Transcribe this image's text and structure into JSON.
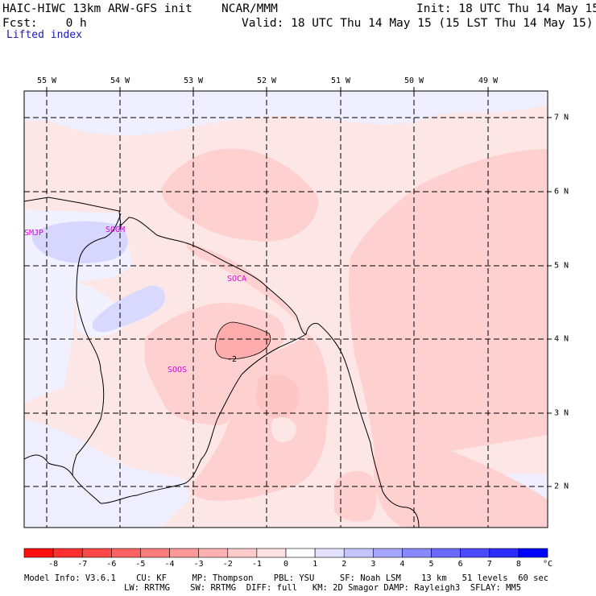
{
  "header": {
    "model": "HAIC-HIWC 13km ARW-GFS init",
    "center": "NCAR/MMM",
    "init": "Init: 18 UTC Thu 14 May 15",
    "fcst": "Fcst:    0 h",
    "valid": "Valid: 18 UTC Thu 14 May 15 (15 LST Thu 14 May 15)",
    "field": "Lifted index"
  },
  "longitude_labels": [
    "55 W",
    "54 W",
    "53 W",
    "52 W",
    "51 W",
    "50 W",
    "49 W"
  ],
  "latitude_labels": [
    "7 N",
    "6 N",
    "5 N",
    "4 N",
    "3 N",
    "2 N"
  ],
  "stations": [
    {
      "id": "SMJP"
    },
    {
      "id": "SOGM"
    },
    {
      "id": "SOCA"
    },
    {
      "id": "SOOS"
    }
  ],
  "contour_labels": [
    "-2"
  ],
  "colorbar": {
    "values": [
      "-8",
      "-7",
      "-6",
      "-5",
      "-4",
      "-3",
      "-2",
      "-1",
      "0",
      "1",
      "2",
      "3",
      "4",
      "5",
      "6",
      "7",
      "8"
    ],
    "unit": "°C",
    "colors": [
      "#ff1010",
      "#ff3030",
      "#ff4848",
      "#ff6262",
      "#ff7c7c",
      "#ff9898",
      "#ffb0b0",
      "#ffcaca",
      "#ffe2e2",
      "#ffffff",
      "#e2e2ff",
      "#c4c4ff",
      "#a6a6ff",
      "#8888ff",
      "#6a6aff",
      "#4a4aff",
      "#2c2cff",
      "#0000ff"
    ]
  },
  "footer": {
    "line1": "Model Info: V3.6.1    CU: KF     MP: Thompson    PBL: YSU     SF: Noah LSM    13 km   51 levels  60 sec",
    "line2": "LW: RRTMG    SW: RRTMG  DIFF: full   KM: 2D Smagor DAMP: Rayleigh3  SFLAY: MM5"
  }
}
